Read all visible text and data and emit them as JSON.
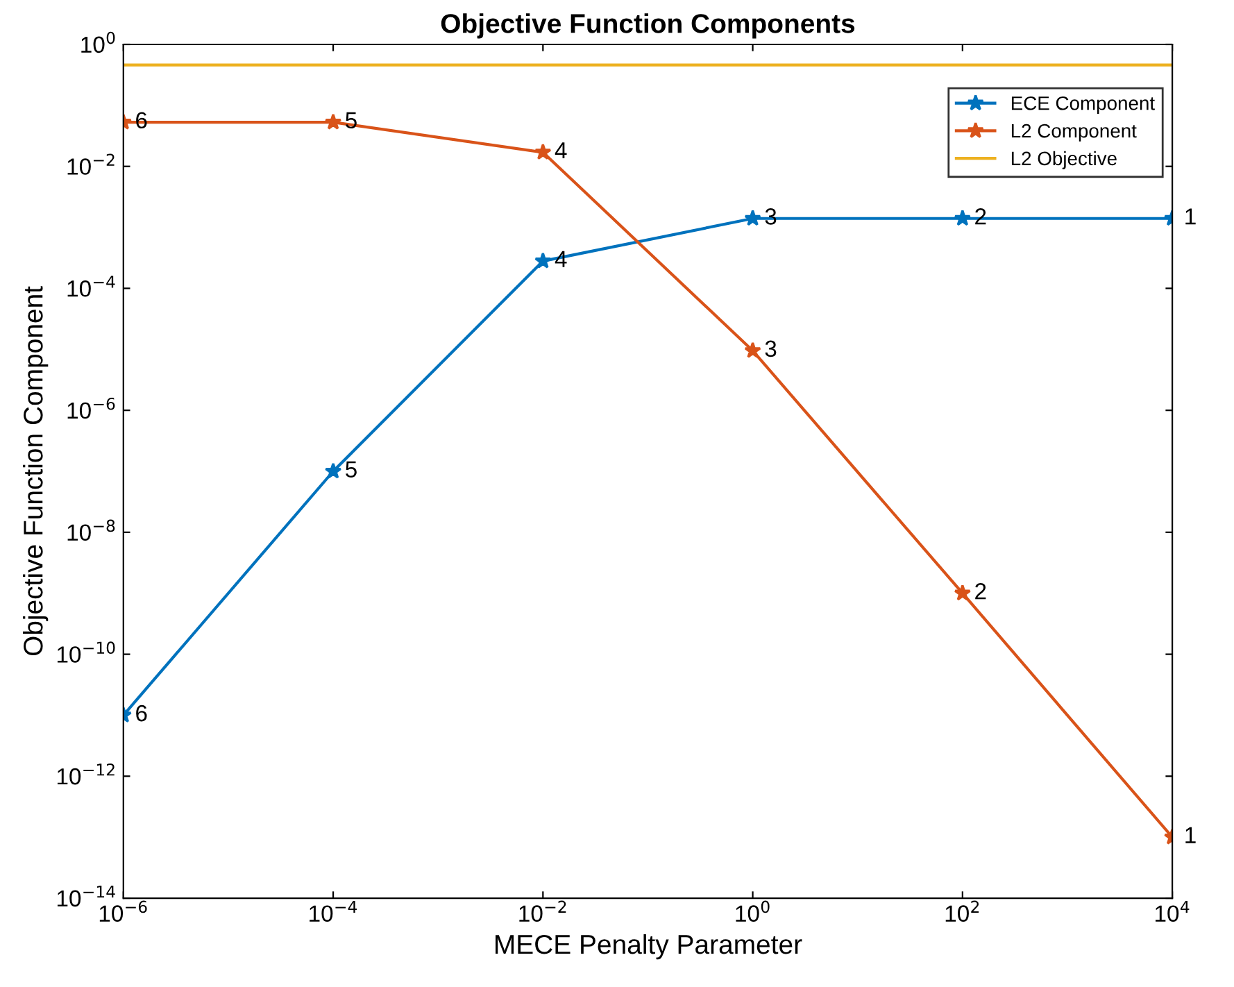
{
  "chart_data": {
    "type": "line",
    "title": "Objective Function Components",
    "xlabel": "MECE Penalty Parameter",
    "ylabel": "Objective Function Component",
    "log": "xy",
    "x": [
      1e-06,
      0.0001,
      0.01,
      1,
      100,
      10000
    ],
    "series": [
      {
        "name": "ECE Component",
        "color": "#0072bd",
        "marker": "star",
        "values": [
          1e-11,
          1e-07,
          0.00028,
          0.0014,
          0.0014,
          0.0014
        ]
      },
      {
        "name": "L2 Component",
        "color": "#d95319",
        "marker": "star",
        "values": [
          0.053,
          0.053,
          0.017,
          9.5e-06,
          1e-09,
          1e-13
        ]
      },
      {
        "name": "L2 Objective",
        "color": "#edb120",
        "marker": "none",
        "values": [
          0.46,
          0.46,
          0.46,
          0.46,
          0.46,
          0.46
        ]
      }
    ],
    "xlim": [
      1e-06,
      10000
    ],
    "ylim": [
      1e-14,
      1
    ],
    "xticks": [
      {
        "value": 1e-06,
        "label": "10$^{−6}$"
      },
      {
        "value": 0.0001,
        "label": "10$^{−4}$"
      },
      {
        "value": 0.01,
        "label": "10$^{−2}$"
      },
      {
        "value": 1,
        "label": "10$^{0}$"
      },
      {
        "value": 100,
        "label": "10$^{2}$"
      },
      {
        "value": 10000,
        "label": "10$^{4}$"
      }
    ],
    "yticks": [
      {
        "value": 1e-14,
        "label": "10$^{−14}$"
      },
      {
        "value": 1e-12,
        "label": "10$^{−12}$"
      },
      {
        "value": 1e-10,
        "label": "10$^{−10}$"
      },
      {
        "value": 1e-08,
        "label": "10$^{−8}$"
      },
      {
        "value": 1e-06,
        "label": "10$^{−6}$"
      },
      {
        "value": 0.0001,
        "label": "10$^{−4}$"
      },
      {
        "value": 0.01,
        "label": "10$^{−2}$"
      },
      {
        "value": 1,
        "label": "10$^{0}$"
      }
    ],
    "legend": "top right",
    "grid": false,
    "line_style": "solid",
    "annotations": [
      {
        "text": "6",
        "x": 1e-06,
        "y": 1e-11
      },
      {
        "text": "5",
        "x": 0.0001,
        "y": 1e-07
      },
      {
        "text": "4",
        "x": 0.01,
        "y": 0.00028
      },
      {
        "text": "3",
        "x": 1,
        "y": 0.0014
      },
      {
        "text": "2",
        "x": 100,
        "y": 0.0014
      },
      {
        "text": "1",
        "x": 10000,
        "y": 0.0014
      },
      {
        "text": "6",
        "x": 1e-06,
        "y": 0.053
      },
      {
        "text": "5",
        "x": 0.0001,
        "y": 0.053
      },
      {
        "text": "4",
        "x": 0.01,
        "y": 0.017
      },
      {
        "text": "3",
        "x": 1,
        "y": 9.5e-06
      },
      {
        "text": "2",
        "x": 100,
        "y": 1e-09
      },
      {
        "text": "1",
        "x": 10000,
        "y": 1e-13
      }
    ]
  }
}
